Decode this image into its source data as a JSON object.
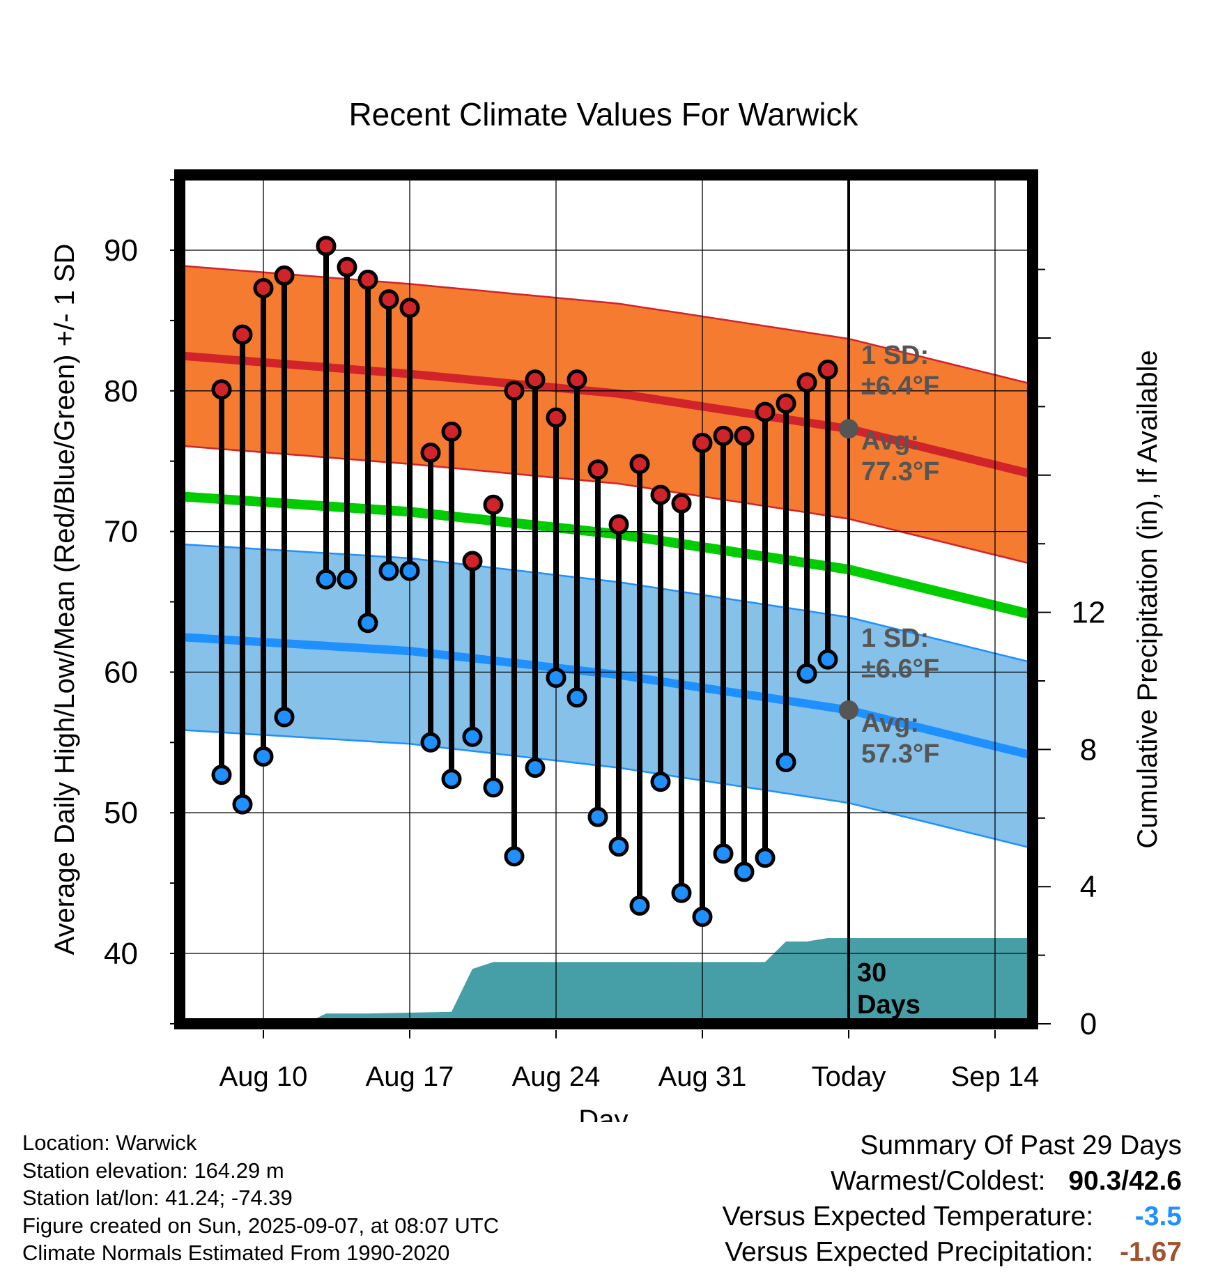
{
  "title": "Recent Climate Values For Warwick",
  "chart_data": {
    "type": "range-dot",
    "title": "Recent Climate Values For Warwick",
    "xlabel": "Day",
    "ylabel_left": "Average Daily High/Low/Mean (Red/Blue/Green) +/- 1 SD",
    "ylabel_right": "Cumulative Precipitation (in), If Available",
    "ylim_left": [
      35,
      95
    ],
    "ylim_right": [
      0,
      22.3
    ],
    "x_ticks": [
      {
        "date": "2025-08-10",
        "label": "Aug 10"
      },
      {
        "date": "2025-08-17",
        "label": "Aug 17"
      },
      {
        "date": "2025-08-24",
        "label": "Aug 24"
      },
      {
        "date": "2025-08-31",
        "label": "Aug 31"
      },
      {
        "date": "2025-09-07",
        "label": "Today"
      },
      {
        "date": "2025-09-14",
        "label": "Sep 14"
      }
    ],
    "x_range": [
      "2025-08-06",
      "2025-09-16"
    ],
    "y_ticks_left": [
      40,
      50,
      60,
      70,
      80,
      90
    ],
    "y_ticks_right": [
      0,
      4,
      8,
      12
    ],
    "today": "2025-09-07",
    "days_label": [
      "30",
      "Days"
    ],
    "daily": [
      {
        "date": "2025-08-08",
        "high": 80.1,
        "low": 52.7
      },
      {
        "date": "2025-08-09",
        "high": 84.0,
        "low": 50.6
      },
      {
        "date": "2025-08-10",
        "high": 87.3,
        "low": 54.0
      },
      {
        "date": "2025-08-11",
        "high": 88.2,
        "low": 56.8
      },
      {
        "date": "2025-08-13",
        "high": 90.3,
        "low": 66.6
      },
      {
        "date": "2025-08-14",
        "high": 88.8,
        "low": 66.6
      },
      {
        "date": "2025-08-15",
        "high": 87.9,
        "low": 63.5
      },
      {
        "date": "2025-08-16",
        "high": 86.5,
        "low": 67.2
      },
      {
        "date": "2025-08-17",
        "high": 85.9,
        "low": 67.2
      },
      {
        "date": "2025-08-18",
        "high": 75.6,
        "low": 55.0
      },
      {
        "date": "2025-08-19",
        "high": 77.1,
        "low": 52.4
      },
      {
        "date": "2025-08-20",
        "high": 67.9,
        "low": 55.4
      },
      {
        "date": "2025-08-21",
        "high": 71.9,
        "low": 51.8
      },
      {
        "date": "2025-08-22",
        "high": 80.0,
        "low": 46.9
      },
      {
        "date": "2025-08-23",
        "high": 80.8,
        "low": 53.2
      },
      {
        "date": "2025-08-24",
        "high": 78.1,
        "low": 59.6
      },
      {
        "date": "2025-08-25",
        "high": 80.8,
        "low": 58.2
      },
      {
        "date": "2025-08-26",
        "high": 74.4,
        "low": 49.7
      },
      {
        "date": "2025-08-27",
        "high": 70.5,
        "low": 47.6
      },
      {
        "date": "2025-08-28",
        "high": 74.8,
        "low": 43.4
      },
      {
        "date": "2025-08-29",
        "high": 72.6,
        "low": 52.2
      },
      {
        "date": "2025-08-30",
        "high": 72.0,
        "low": 44.3
      },
      {
        "date": "2025-08-31",
        "high": 76.3,
        "low": 42.6
      },
      {
        "date": "2025-09-01",
        "high": 76.8,
        "low": 47.1
      },
      {
        "date": "2025-09-02",
        "high": 76.8,
        "low": 45.8
      },
      {
        "date": "2025-09-03",
        "high": 78.5,
        "low": 46.8
      },
      {
        "date": "2025-09-04",
        "high": 79.1,
        "low": 53.6
      },
      {
        "date": "2025-09-05",
        "high": 80.6,
        "low": 59.9
      },
      {
        "date": "2025-09-06",
        "high": 81.5,
        "low": 60.9
      }
    ],
    "normals": [
      {
        "date": "2025-08-06",
        "high": 82.5,
        "low": 62.5,
        "mean": 72.5
      },
      {
        "date": "2025-08-17",
        "high": 81.2,
        "low": 61.5,
        "mean": 71.4
      },
      {
        "date": "2025-08-27",
        "high": 79.8,
        "low": 59.8,
        "mean": 69.8
      },
      {
        "date": "2025-09-07",
        "high": 77.3,
        "low": 57.3,
        "mean": 67.3
      },
      {
        "date": "2025-09-16",
        "high": 74.0,
        "low": 54.0,
        "mean": 64.0
      }
    ],
    "sd_high": 6.4,
    "sd_low": 6.6,
    "precip_cumulative": [
      {
        "date": "2025-08-12",
        "value": 0.0
      },
      {
        "date": "2025-08-13",
        "value": 0.3
      },
      {
        "date": "2025-08-15",
        "value": 0.3
      },
      {
        "date": "2025-08-19",
        "value": 0.35
      },
      {
        "date": "2025-08-20",
        "value": 1.6
      },
      {
        "date": "2025-08-21",
        "value": 1.8
      },
      {
        "date": "2025-09-03",
        "value": 1.8
      },
      {
        "date": "2025-09-04",
        "value": 2.4
      },
      {
        "date": "2025-09-05",
        "value": 2.4
      },
      {
        "date": "2025-09-06",
        "value": 2.5
      },
      {
        "date": "2025-09-16",
        "value": 2.5
      }
    ],
    "annotations": {
      "high_sd": [
        "1 SD:",
        "±6.4°F"
      ],
      "high_avg": [
        "Avg:",
        "77.3°F"
      ],
      "low_sd": [
        "1 SD:",
        "±6.6°F"
      ],
      "low_avg": [
        "Avg:",
        "57.3°F"
      ]
    },
    "colors": {
      "high_band": "#f47b2f",
      "high_line": "#d1232a",
      "high_dot": "#d1232a",
      "low_band": "#85c1e9",
      "low_line": "#1e90ff",
      "low_dot": "#1e90ff",
      "mean_line": "#00cc00",
      "precip": "#469fa6",
      "annotation": "#555555"
    }
  },
  "info": {
    "location": "Location: Warwick",
    "elevation": "Station elevation: 164.29 m",
    "latlon": "Station lat/lon: 41.24; -74.39",
    "created": "Figure created on Sun, 2025-09-07, at 08:07 UTC",
    "normals": "Climate Normals Estimated From 1990-2020"
  },
  "summary": {
    "title": "Summary Of Past 29 Days",
    "warm_label": "Warmest/Coldest:",
    "warm_value": "90.3/42.6",
    "temp_label": "Versus Expected Temperature:",
    "temp_value": "-3.5",
    "temp_color": "#1e90ff",
    "precip_label": "Versus Expected Precipitation:",
    "precip_value": "-1.67",
    "precip_color": "#a0522d"
  }
}
